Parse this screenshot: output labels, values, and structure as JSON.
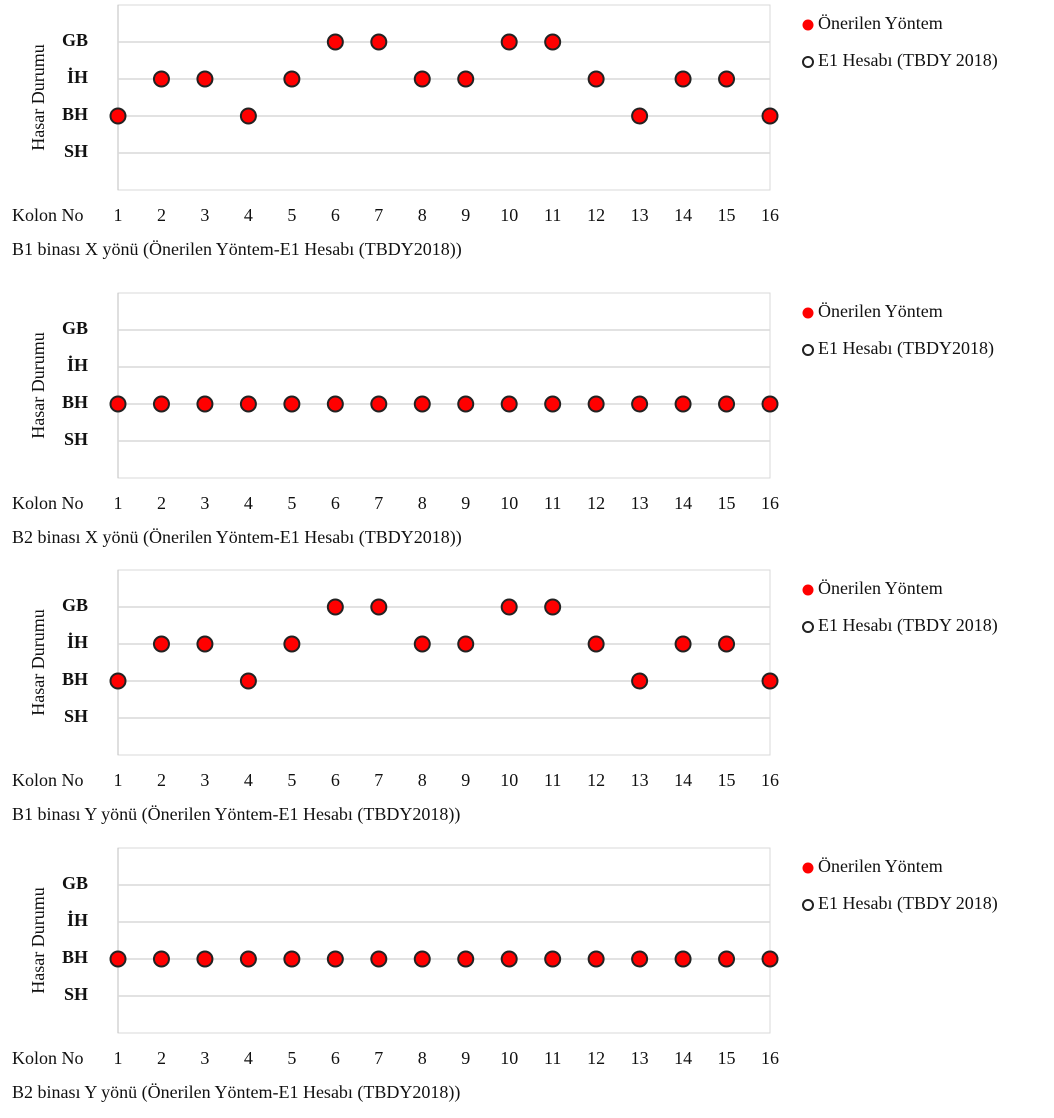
{
  "chart_data": [
    {
      "type": "scatter",
      "title": "B1 binası X yönü (Önerilen Yöntem-E1 Hesabı (TBDY2018))",
      "xlabel": "Kolon No",
      "ylabel": "Hasar Durumu",
      "categories": [
        "1",
        "2",
        "3",
        "4",
        "5",
        "6",
        "7",
        "8",
        "9",
        "10",
        "11",
        "12",
        "13",
        "14",
        "15",
        "16"
      ],
      "ylim": [
        0,
        5
      ],
      "yticks": [
        {
          "value": 1,
          "label": "SH"
        },
        {
          "value": 2,
          "label": "BH"
        },
        {
          "value": 3,
          "label": "İH"
        },
        {
          "value": 4,
          "label": "GB"
        }
      ],
      "grid": true,
      "legend": "right",
      "series": [
        {
          "name": "Önerilen Yöntem",
          "color": "#ff0000",
          "marker": "filled",
          "values": [
            2,
            3,
            3,
            2,
            3,
            4,
            4,
            3,
            3,
            4,
            4,
            3,
            2,
            3,
            3,
            2
          ]
        },
        {
          "name": "E1 Hesabı (TBDY 2018)",
          "color": "#222222",
          "marker": "open",
          "values": [
            2,
            3,
            3,
            2,
            3,
            4,
            4,
            3,
            3,
            4,
            4,
            3,
            2,
            3,
            3,
            2
          ]
        }
      ]
    },
    {
      "type": "scatter",
      "title": "B2 binası X yönü (Önerilen Yöntem-E1 Hesabı (TBDY2018))",
      "xlabel": "Kolon No",
      "ylabel": "Hasar Durumu",
      "categories": [
        "1",
        "2",
        "3",
        "4",
        "5",
        "6",
        "7",
        "8",
        "9",
        "10",
        "11",
        "12",
        "13",
        "14",
        "15",
        "16"
      ],
      "ylim": [
        0,
        5
      ],
      "yticks": [
        {
          "value": 1,
          "label": "SH"
        },
        {
          "value": 2,
          "label": "BH"
        },
        {
          "value": 3,
          "label": "İH"
        },
        {
          "value": 4,
          "label": "GB"
        }
      ],
      "grid": true,
      "legend": "right",
      "series": [
        {
          "name": "Önerilen Yöntem",
          "color": "#ff0000",
          "marker": "filled",
          "values": [
            2,
            2,
            2,
            2,
            2,
            2,
            2,
            2,
            2,
            2,
            2,
            2,
            2,
            2,
            2,
            2
          ]
        },
        {
          "name": "E1 Hesabı (TBDY2018)",
          "color": "#222222",
          "marker": "open",
          "values": [
            2,
            2,
            2,
            2,
            2,
            2,
            2,
            2,
            2,
            2,
            2,
            2,
            2,
            2,
            2,
            2
          ]
        }
      ]
    },
    {
      "type": "scatter",
      "title": "B1 binası Y yönü (Önerilen Yöntem-E1 Hesabı (TBDY2018))",
      "xlabel": "Kolon No",
      "ylabel": "Hasar Durumu",
      "categories": [
        "1",
        "2",
        "3",
        "4",
        "5",
        "6",
        "7",
        "8",
        "9",
        "10",
        "11",
        "12",
        "13",
        "14",
        "15",
        "16"
      ],
      "ylim": [
        0,
        5
      ],
      "yticks": [
        {
          "value": 1,
          "label": "SH"
        },
        {
          "value": 2,
          "label": "BH"
        },
        {
          "value": 3,
          "label": "İH"
        },
        {
          "value": 4,
          "label": "GB"
        }
      ],
      "grid": true,
      "legend": "right",
      "series": [
        {
          "name": "Önerilen Yöntem",
          "color": "#ff0000",
          "marker": "filled",
          "values": [
            2,
            3,
            3,
            2,
            3,
            4,
            4,
            3,
            3,
            4,
            4,
            3,
            2,
            3,
            3,
            2
          ]
        },
        {
          "name": "E1 Hesabı (TBDY 2018)",
          "color": "#222222",
          "marker": "open",
          "values": [
            2,
            3,
            3,
            2,
            3,
            4,
            4,
            3,
            3,
            4,
            4,
            3,
            2,
            3,
            3,
            2
          ]
        }
      ]
    },
    {
      "type": "scatter",
      "title": "B2 binası Y yönü (Önerilen Yöntem-E1 Hesabı (TBDY2018))",
      "xlabel": "Kolon No",
      "ylabel": "Hasar Durumu",
      "categories": [
        "1",
        "2",
        "3",
        "4",
        "5",
        "6",
        "7",
        "8",
        "9",
        "10",
        "11",
        "12",
        "13",
        "14",
        "15",
        "16"
      ],
      "ylim": [
        0,
        5
      ],
      "yticks": [
        {
          "value": 1,
          "label": "SH"
        },
        {
          "value": 2,
          "label": "BH"
        },
        {
          "value": 3,
          "label": "İH"
        },
        {
          "value": 4,
          "label": "GB"
        }
      ],
      "grid": true,
      "legend": "right",
      "series": [
        {
          "name": "Önerilen Yöntem",
          "color": "#ff0000",
          "marker": "filled",
          "values": [
            2,
            2,
            2,
            2,
            2,
            2,
            2,
            2,
            2,
            2,
            2,
            2,
            2,
            2,
            2,
            2
          ]
        },
        {
          "name": "E1 Hesabı (TBDY 2018)",
          "color": "#222222",
          "marker": "open",
          "values": [
            2,
            2,
            2,
            2,
            2,
            2,
            2,
            2,
            2,
            2,
            2,
            2,
            2,
            2,
            2,
            2
          ]
        }
      ]
    }
  ]
}
